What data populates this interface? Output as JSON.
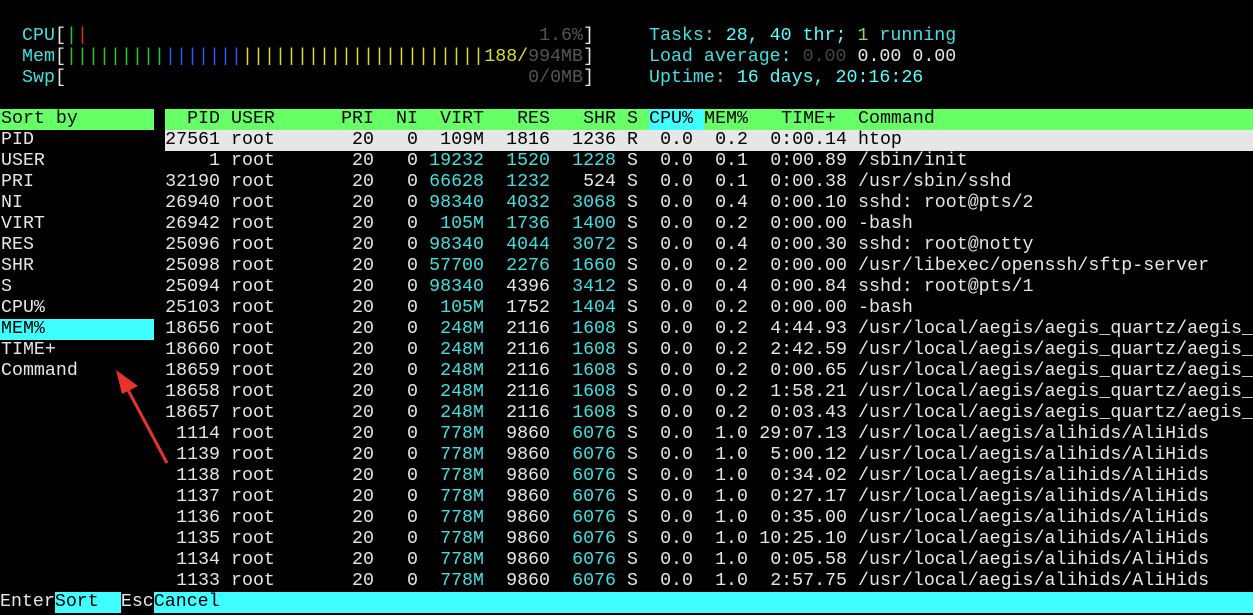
{
  "meters": {
    "cpu": {
      "label": "CPU",
      "value": "1.6%",
      "bar_colors": [
        "#22cc22",
        "#dd3311"
      ]
    },
    "mem": {
      "label": "Mem",
      "used": "188/",
      "total": "994MB",
      "bar_segments": [
        {
          "color": "#22cc22",
          "count": 9
        },
        {
          "color": "#3355ff",
          "count": 7
        },
        {
          "color": "#dddd22",
          "count": 22
        }
      ]
    },
    "swp": {
      "label": "Swp",
      "value": "0/0MB"
    }
  },
  "summary": {
    "tasks_label": "Tasks: ",
    "tasks_value": "28, 40 thr; ",
    "running_count": "1",
    "running_label": " running",
    "load_label": "Load average: ",
    "load_1": "0.00",
    "load_5": "0.00",
    "load_15": "0.00",
    "uptime_label": "Uptime: ",
    "uptime_value": "16 days, 20:16:26"
  },
  "sort_panel": {
    "title": "Sort by",
    "items": [
      "PID",
      "USER",
      "PRI",
      "NI",
      "VIRT",
      "RES",
      "SHR",
      "S",
      "CPU%",
      "MEM%",
      "TIME+",
      "Command"
    ],
    "selected": "MEM%"
  },
  "table": {
    "headers": {
      "pid": "PID",
      "user": "USER",
      "pri": "PRI",
      "ni": "NI",
      "virt": "VIRT",
      "res": "RES",
      "shr": "SHR",
      "s": "S",
      "cpu": "CPU%",
      "mem": "MEM%",
      "time": "TIME+",
      "command": "Command"
    },
    "sorted_column": "cpu",
    "selected_row": 0,
    "rows": [
      {
        "pid": "27561",
        "user": "root",
        "pri": "20",
        "ni": "0",
        "virt": "109M",
        "res": "1816",
        "shr": "1236",
        "s": "R",
        "cpu": "0.0",
        "mem": "0.2",
        "time": "0:00.14",
        "command": "htop",
        "hl": []
      },
      {
        "pid": "1",
        "user": "root",
        "pri": "20",
        "ni": "0",
        "virt": "19232",
        "res": "1520",
        "shr": "1228",
        "s": "S",
        "cpu": "0.0",
        "mem": "0.1",
        "time": "0:00.89",
        "command": "/sbin/init",
        "hl": [
          "virt",
          "res",
          "shr"
        ]
      },
      {
        "pid": "32190",
        "user": "root",
        "pri": "20",
        "ni": "0",
        "virt": "66628",
        "res": "1232",
        "shr": "524",
        "s": "S",
        "cpu": "0.0",
        "mem": "0.1",
        "time": "0:00.38",
        "command": "/usr/sbin/sshd",
        "hl": [
          "virt",
          "res"
        ]
      },
      {
        "pid": "26940",
        "user": "root",
        "pri": "20",
        "ni": "0",
        "virt": "98340",
        "res": "4032",
        "shr": "3068",
        "s": "S",
        "cpu": "0.0",
        "mem": "0.4",
        "time": "0:00.10",
        "command": "sshd: root@pts/2",
        "hl": [
          "virt",
          "res",
          "shr"
        ]
      },
      {
        "pid": "26942",
        "user": "root",
        "pri": "20",
        "ni": "0",
        "virt": "105M",
        "res": "1736",
        "shr": "1400",
        "s": "S",
        "cpu": "0.0",
        "mem": "0.2",
        "time": "0:00.00",
        "command": "-bash",
        "hl": [
          "virt",
          "res",
          "shr"
        ]
      },
      {
        "pid": "25096",
        "user": "root",
        "pri": "20",
        "ni": "0",
        "virt": "98340",
        "res": "4044",
        "shr": "3072",
        "s": "S",
        "cpu": "0.0",
        "mem": "0.4",
        "time": "0:00.30",
        "command": "sshd: root@notty",
        "hl": [
          "virt",
          "res",
          "shr"
        ]
      },
      {
        "pid": "25098",
        "user": "root",
        "pri": "20",
        "ni": "0",
        "virt": "57700",
        "res": "2276",
        "shr": "1660",
        "s": "S",
        "cpu": "0.0",
        "mem": "0.2",
        "time": "0:00.00",
        "command": "/usr/libexec/openssh/sftp-server",
        "hl": [
          "virt",
          "res",
          "shr"
        ]
      },
      {
        "pid": "25094",
        "user": "root",
        "pri": "20",
        "ni": "0",
        "virt": "98340",
        "res": "4396",
        "shr": "3412",
        "s": "S",
        "cpu": "0.0",
        "mem": "0.4",
        "time": "0:00.84",
        "command": "sshd: root@pts/1",
        "hl": [
          "virt",
          "shr"
        ]
      },
      {
        "pid": "25103",
        "user": "root",
        "pri": "20",
        "ni": "0",
        "virt": "105M",
        "res": "1752",
        "shr": "1404",
        "s": "S",
        "cpu": "0.0",
        "mem": "0.2",
        "time": "0:00.00",
        "command": "-bash",
        "hl": [
          "virt",
          "shr"
        ]
      },
      {
        "pid": "18656",
        "user": "root",
        "pri": "20",
        "ni": "0",
        "virt": "248M",
        "res": "2116",
        "shr": "1608",
        "s": "S",
        "cpu": "0.0",
        "mem": "0.2",
        "time": "4:44.93",
        "command": "/usr/local/aegis/aegis_quartz/aegis_",
        "hl": [
          "virt",
          "shr"
        ]
      },
      {
        "pid": "18660",
        "user": "root",
        "pri": "20",
        "ni": "0",
        "virt": "248M",
        "res": "2116",
        "shr": "1608",
        "s": "S",
        "cpu": "0.0",
        "mem": "0.2",
        "time": "2:42.59",
        "command": "/usr/local/aegis/aegis_quartz/aegis_",
        "hl": [
          "virt",
          "shr"
        ]
      },
      {
        "pid": "18659",
        "user": "root",
        "pri": "20",
        "ni": "0",
        "virt": "248M",
        "res": "2116",
        "shr": "1608",
        "s": "S",
        "cpu": "0.0",
        "mem": "0.2",
        "time": "0:00.65",
        "command": "/usr/local/aegis/aegis_quartz/aegis_",
        "hl": [
          "virt",
          "shr"
        ]
      },
      {
        "pid": "18658",
        "user": "root",
        "pri": "20",
        "ni": "0",
        "virt": "248M",
        "res": "2116",
        "shr": "1608",
        "s": "S",
        "cpu": "0.0",
        "mem": "0.2",
        "time": "1:58.21",
        "command": "/usr/local/aegis/aegis_quartz/aegis_",
        "hl": [
          "virt",
          "shr"
        ]
      },
      {
        "pid": "18657",
        "user": "root",
        "pri": "20",
        "ni": "0",
        "virt": "248M",
        "res": "2116",
        "shr": "1608",
        "s": "S",
        "cpu": "0.0",
        "mem": "0.2",
        "time": "0:03.43",
        "command": "/usr/local/aegis/aegis_quartz/aegis_",
        "hl": [
          "virt",
          "shr"
        ]
      },
      {
        "pid": "1114",
        "user": "root",
        "pri": "20",
        "ni": "0",
        "virt": "778M",
        "res": "9860",
        "shr": "6076",
        "s": "S",
        "cpu": "0.0",
        "mem": "1.0",
        "time": "29:07.13",
        "command": "/usr/local/aegis/alihids/AliHids",
        "hl": [
          "virt",
          "shr"
        ]
      },
      {
        "pid": "1139",
        "user": "root",
        "pri": "20",
        "ni": "0",
        "virt": "778M",
        "res": "9860",
        "shr": "6076",
        "s": "S",
        "cpu": "0.0",
        "mem": "1.0",
        "time": "5:00.12",
        "command": "/usr/local/aegis/alihids/AliHids",
        "hl": [
          "virt",
          "shr"
        ]
      },
      {
        "pid": "1138",
        "user": "root",
        "pri": "20",
        "ni": "0",
        "virt": "778M",
        "res": "9860",
        "shr": "6076",
        "s": "S",
        "cpu": "0.0",
        "mem": "1.0",
        "time": "0:34.02",
        "command": "/usr/local/aegis/alihids/AliHids",
        "hl": [
          "virt",
          "shr"
        ]
      },
      {
        "pid": "1137",
        "user": "root",
        "pri": "20",
        "ni": "0",
        "virt": "778M",
        "res": "9860",
        "shr": "6076",
        "s": "S",
        "cpu": "0.0",
        "mem": "1.0",
        "time": "0:27.17",
        "command": "/usr/local/aegis/alihids/AliHids",
        "hl": [
          "virt",
          "shr"
        ]
      },
      {
        "pid": "1136",
        "user": "root",
        "pri": "20",
        "ni": "0",
        "virt": "778M",
        "res": "9860",
        "shr": "6076",
        "s": "S",
        "cpu": "0.0",
        "mem": "1.0",
        "time": "0:35.00",
        "command": "/usr/local/aegis/alihids/AliHids",
        "hl": [
          "virt",
          "shr"
        ]
      },
      {
        "pid": "1135",
        "user": "root",
        "pri": "20",
        "ni": "0",
        "virt": "778M",
        "res": "9860",
        "shr": "6076",
        "s": "S",
        "cpu": "0.0",
        "mem": "1.0",
        "time": "10:25.10",
        "command": "/usr/local/aegis/alihids/AliHids",
        "hl": [
          "virt",
          "shr"
        ]
      },
      {
        "pid": "1134",
        "user": "root",
        "pri": "20",
        "ni": "0",
        "virt": "778M",
        "res": "9860",
        "shr": "6076",
        "s": "S",
        "cpu": "0.0",
        "mem": "1.0",
        "time": "0:05.58",
        "command": "/usr/local/aegis/alihids/AliHids",
        "hl": [
          "virt",
          "shr"
        ]
      },
      {
        "pid": "1133",
        "user": "root",
        "pri": "20",
        "ni": "0",
        "virt": "778M",
        "res": "9860",
        "shr": "6076",
        "s": "S",
        "cpu": "0.0",
        "mem": "1.0",
        "time": "2:57.75",
        "command": "/usr/local/aegis/alihids/AliHids",
        "hl": [
          "virt",
          "shr"
        ]
      }
    ]
  },
  "footer": {
    "enter_key": "Enter",
    "enter_action": "Sort  ",
    "esc_key": "Esc",
    "esc_action": "Cancel"
  },
  "colors": {
    "header_green": "#66ff66",
    "highlight_cyan": "#40ffff",
    "annotation_arrow": "#e8332a"
  }
}
